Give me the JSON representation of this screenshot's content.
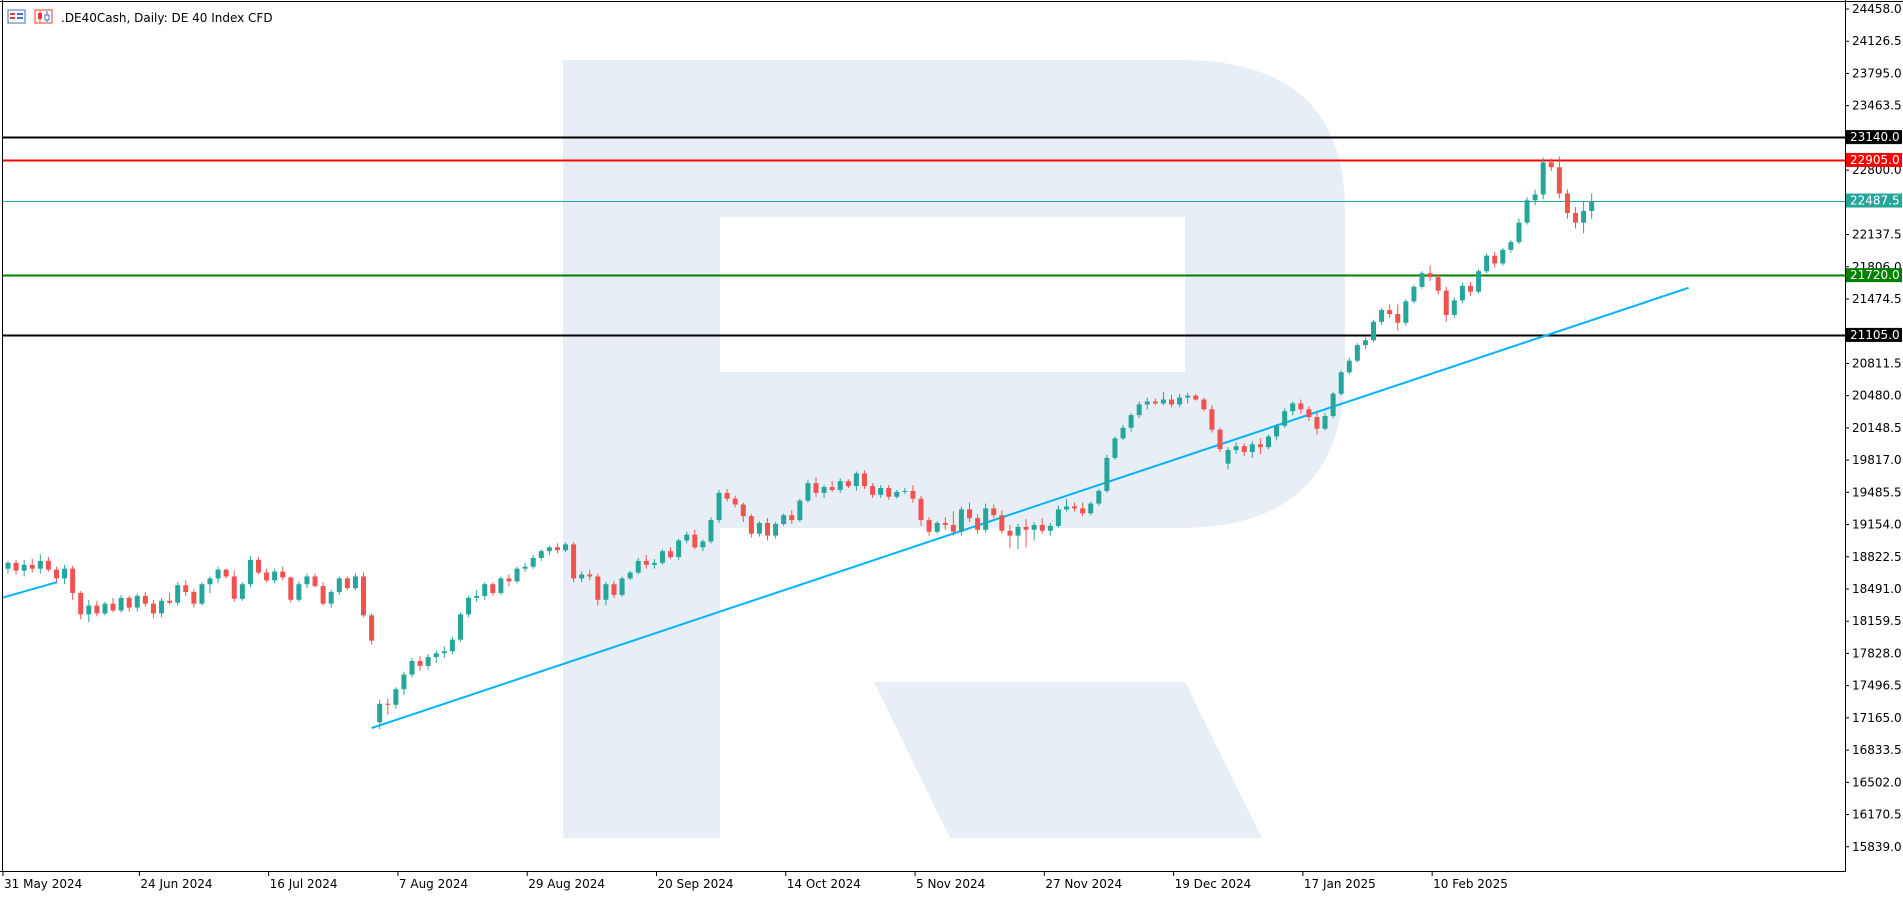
{
  "header": {
    "symbol_title": ".DE40Cash, Daily:  DE 40 Index CFD",
    "icons": [
      "bars-chart-icon",
      "candles-chart-icon"
    ]
  },
  "chart_data": {
    "type": "candlestick",
    "timeframe": "Daily",
    "ylim": [
      15600,
      24530
    ],
    "y_ticks": [
      "24458.0",
      "24126.5",
      "23795.0",
      "23463.5",
      "23140.0",
      "22800.0",
      "22487.5",
      "22137.5",
      "21806.0",
      "21474.5",
      "21105.0",
      "20811.5",
      "20480.0",
      "20148.5",
      "19817.0",
      "19485.5",
      "19154.0",
      "18822.5",
      "18491.0",
      "18159.5",
      "17828.0",
      "17496.5",
      "17165.0",
      "16833.5",
      "16502.0",
      "16170.5",
      "15839.0"
    ],
    "x_ticks": [
      "31 May 2024",
      "24 Jun 2024",
      "16 Jul 2024",
      "7 Aug 2024",
      "29 Aug 2024",
      "20 Sep 2024",
      "14 Oct 2024",
      "5 Nov 2024",
      "27 Nov 2024",
      "19 Dec 2024",
      "17 Jan 2025",
      "10 Feb 2025"
    ],
    "x_tick_bar_index": [
      0,
      17,
      33,
      49,
      65,
      81,
      97,
      113,
      129,
      145,
      161,
      177
    ],
    "levels": [
      {
        "price": 23140.0,
        "label": "23140.0",
        "color": "#000000",
        "label_bg": "#000000",
        "label_fg": "#ffffff"
      },
      {
        "price": 22905.0,
        "label": "22905.0",
        "color": "#ff0000",
        "label_bg": "#ff0000",
        "label_fg": "#ffffff"
      },
      {
        "price": 22487.5,
        "label": "22487.5",
        "color": "#26a69a",
        "label_bg": "#26a69a",
        "label_fg": "#ffffff"
      },
      {
        "price": 21720.0,
        "label": "21720.0",
        "color": "#008000",
        "label_bg": "#008000",
        "label_fg": "#ffffff"
      },
      {
        "price": 21105.0,
        "label": "21105.0",
        "color": "#000000",
        "label_bg": "#000000",
        "label_fg": "#ffffff"
      }
    ],
    "trendline": {
      "from": {
        "bar": 45,
        "price": 17060
      },
      "to": {
        "bar": 208,
        "price": 21590
      },
      "color": "#00b4ff"
    },
    "colors": {
      "up": "#26a69a",
      "down": "#ef5350",
      "axis": "#000000",
      "grid_text": "#000000",
      "watermark": "#e8eef5"
    },
    "candles": [
      [
        18700,
        18780,
        18650,
        18760
      ],
      [
        18760,
        18790,
        18640,
        18680
      ],
      [
        18680,
        18790,
        18620,
        18740
      ],
      [
        18740,
        18800,
        18660,
        18700
      ],
      [
        18700,
        18850,
        18650,
        18780
      ],
      [
        18780,
        18820,
        18670,
        18690
      ],
      [
        18690,
        18720,
        18550,
        18600
      ],
      [
        18600,
        18740,
        18540,
        18700
      ],
      [
        18700,
        18730,
        18380,
        18450
      ],
      [
        18450,
        18470,
        18180,
        18230
      ],
      [
        18230,
        18380,
        18150,
        18320
      ],
      [
        18320,
        18370,
        18210,
        18240
      ],
      [
        18240,
        18360,
        18220,
        18340
      ],
      [
        18340,
        18400,
        18250,
        18270
      ],
      [
        18270,
        18430,
        18250,
        18400
      ],
      [
        18400,
        18420,
        18260,
        18300
      ],
      [
        18300,
        18440,
        18260,
        18420
      ],
      [
        18420,
        18460,
        18310,
        18340
      ],
      [
        18340,
        18380,
        18190,
        18240
      ],
      [
        18240,
        18400,
        18200,
        18370
      ],
      [
        18370,
        18450,
        18330,
        18350
      ],
      [
        18350,
        18560,
        18320,
        18530
      ],
      [
        18530,
        18580,
        18420,
        18460
      ],
      [
        18460,
        18490,
        18300,
        18340
      ],
      [
        18340,
        18560,
        18320,
        18540
      ],
      [
        18540,
        18620,
        18450,
        18600
      ],
      [
        18600,
        18720,
        18550,
        18690
      ],
      [
        18690,
        18700,
        18600,
        18620
      ],
      [
        18620,
        18680,
        18360,
        18390
      ],
      [
        18390,
        18560,
        18370,
        18540
      ],
      [
        18540,
        18830,
        18510,
        18790
      ],
      [
        18790,
        18820,
        18640,
        18660
      ],
      [
        18660,
        18700,
        18560,
        18580
      ],
      [
        18580,
        18700,
        18550,
        18670
      ],
      [
        18670,
        18720,
        18580,
        18610
      ],
      [
        18610,
        18620,
        18350,
        18380
      ],
      [
        18380,
        18570,
        18360,
        18540
      ],
      [
        18540,
        18650,
        18500,
        18620
      ],
      [
        18620,
        18650,
        18510,
        18520
      ],
      [
        18520,
        18560,
        18320,
        18340
      ],
      [
        18340,
        18480,
        18300,
        18460
      ],
      [
        18460,
        18620,
        18430,
        18600
      ],
      [
        18600,
        18620,
        18480,
        18500
      ],
      [
        18500,
        18650,
        18480,
        18620
      ],
      [
        18620,
        18660,
        18200,
        18220
      ],
      [
        18220,
        18240,
        17920,
        17960
      ],
      [
        17120,
        17350,
        17050,
        17310
      ],
      [
        17310,
        17360,
        17200,
        17300
      ],
      [
        17300,
        17480,
        17260,
        17460
      ],
      [
        17460,
        17640,
        17400,
        17610
      ],
      [
        17610,
        17780,
        17580,
        17750
      ],
      [
        17750,
        17800,
        17650,
        17700
      ],
      [
        17700,
        17820,
        17660,
        17790
      ],
      [
        17790,
        17860,
        17730,
        17830
      ],
      [
        17830,
        17900,
        17780,
        17850
      ],
      [
        17850,
        18000,
        17820,
        17970
      ],
      [
        17970,
        18250,
        17950,
        18230
      ],
      [
        18230,
        18420,
        18200,
        18400
      ],
      [
        18400,
        18480,
        18360,
        18420
      ],
      [
        18420,
        18560,
        18380,
        18540
      ],
      [
        18540,
        18560,
        18420,
        18450
      ],
      [
        18450,
        18620,
        18430,
        18600
      ],
      [
        18600,
        18640,
        18520,
        18570
      ],
      [
        18570,
        18720,
        18550,
        18700
      ],
      [
        18700,
        18760,
        18670,
        18720
      ],
      [
        18720,
        18840,
        18700,
        18810
      ],
      [
        18810,
        18900,
        18780,
        18880
      ],
      [
        18880,
        18940,
        18840,
        18920
      ],
      [
        18920,
        18960,
        18860,
        18890
      ],
      [
        18890,
        18970,
        18870,
        18950
      ],
      [
        18950,
        18970,
        18560,
        18600
      ],
      [
        18600,
        18670,
        18560,
        18640
      ],
      [
        18640,
        18690,
        18580,
        18620
      ],
      [
        18620,
        18650,
        18320,
        18380
      ],
      [
        18380,
        18560,
        18320,
        18540
      ],
      [
        18540,
        18570,
        18400,
        18430
      ],
      [
        18430,
        18620,
        18410,
        18600
      ],
      [
        18600,
        18680,
        18580,
        18660
      ],
      [
        18660,
        18810,
        18640,
        18780
      ],
      [
        18780,
        18840,
        18700,
        18740
      ],
      [
        18740,
        18800,
        18700,
        18760
      ],
      [
        18760,
        18900,
        18740,
        18880
      ],
      [
        18880,
        18920,
        18800,
        18820
      ],
      [
        18820,
        19010,
        18790,
        18990
      ],
      [
        18990,
        19080,
        18960,
        19050
      ],
      [
        19050,
        19100,
        18900,
        18920
      ],
      [
        18920,
        19000,
        18880,
        18980
      ],
      [
        18980,
        19230,
        18960,
        19200
      ],
      [
        19200,
        19510,
        19170,
        19480
      ],
      [
        19480,
        19520,
        19390,
        19420
      ],
      [
        19420,
        19450,
        19330,
        19360
      ],
      [
        19360,
        19380,
        19180,
        19240
      ],
      [
        19240,
        19260,
        19020,
        19060
      ],
      [
        19060,
        19190,
        19030,
        19170
      ],
      [
        19170,
        19220,
        18990,
        19040
      ],
      [
        19040,
        19180,
        19010,
        19160
      ],
      [
        19160,
        19270,
        19140,
        19250
      ],
      [
        19250,
        19300,
        19160,
        19200
      ],
      [
        19200,
        19420,
        19180,
        19400
      ],
      [
        19400,
        19610,
        19380,
        19580
      ],
      [
        19580,
        19640,
        19440,
        19480
      ],
      [
        19480,
        19560,
        19430,
        19540
      ],
      [
        19540,
        19600,
        19490,
        19510
      ],
      [
        19510,
        19630,
        19480,
        19600
      ],
      [
        19600,
        19620,
        19530,
        19550
      ],
      [
        19550,
        19700,
        19500,
        19680
      ],
      [
        19680,
        19710,
        19520,
        19550
      ],
      [
        19550,
        19580,
        19430,
        19460
      ],
      [
        19460,
        19560,
        19430,
        19530
      ],
      [
        19530,
        19560,
        19410,
        19440
      ],
      [
        19440,
        19510,
        19420,
        19490
      ],
      [
        19490,
        19530,
        19470,
        19500
      ],
      [
        19500,
        19560,
        19380,
        19420
      ],
      [
        19420,
        19450,
        19140,
        19200
      ],
      [
        19200,
        19230,
        19040,
        19080
      ],
      [
        19080,
        19190,
        19060,
        19170
      ],
      [
        19170,
        19230,
        19100,
        19150
      ],
      [
        19150,
        19290,
        19040,
        19080
      ],
      [
        19080,
        19340,
        19040,
        19310
      ],
      [
        19310,
        19380,
        19180,
        19220
      ],
      [
        19220,
        19260,
        19060,
        19100
      ],
      [
        19100,
        19370,
        19070,
        19320
      ],
      [
        19320,
        19360,
        19220,
        19250
      ],
      [
        19250,
        19300,
        19060,
        19090
      ],
      [
        19090,
        19150,
        18910,
        19040
      ],
      [
        19040,
        19160,
        18900,
        19130
      ],
      [
        19130,
        19210,
        18920,
        19100
      ],
      [
        19100,
        19180,
        18990,
        19150
      ],
      [
        19150,
        19220,
        19060,
        19090
      ],
      [
        19090,
        19170,
        19040,
        19140
      ],
      [
        19140,
        19350,
        19120,
        19310
      ],
      [
        19310,
        19420,
        19290,
        19340
      ],
      [
        19340,
        19380,
        19290,
        19320
      ],
      [
        19320,
        19380,
        19240,
        19270
      ],
      [
        19270,
        19390,
        19250,
        19370
      ],
      [
        19370,
        19520,
        19350,
        19500
      ],
      [
        19500,
        19870,
        19480,
        19840
      ],
      [
        19840,
        20060,
        19820,
        20040
      ],
      [
        20040,
        20180,
        20020,
        20150
      ],
      [
        20150,
        20300,
        20110,
        20280
      ],
      [
        20280,
        20420,
        20250,
        20390
      ],
      [
        20390,
        20460,
        20340,
        20420
      ],
      [
        20420,
        20450,
        20380,
        20400
      ],
      [
        20400,
        20520,
        20380,
        20440
      ],
      [
        20440,
        20490,
        20360,
        20390
      ],
      [
        20390,
        20500,
        20360,
        20460
      ],
      [
        20460,
        20510,
        20400,
        20480
      ],
      [
        20480,
        20500,
        20430,
        20440
      ],
      [
        20440,
        20460,
        20320,
        20340
      ],
      [
        20340,
        20380,
        20100,
        20130
      ],
      [
        20130,
        20150,
        19900,
        19930
      ],
      [
        19780,
        19950,
        19720,
        19920
      ],
      [
        19920,
        20000,
        19880,
        19960
      ],
      [
        19960,
        19990,
        19860,
        19900
      ],
      [
        19900,
        20010,
        19840,
        19980
      ],
      [
        19980,
        20040,
        19880,
        19950
      ],
      [
        19950,
        20080,
        19930,
        20060
      ],
      [
        20060,
        20190,
        20020,
        20170
      ],
      [
        20170,
        20350,
        20150,
        20320
      ],
      [
        20320,
        20420,
        20280,
        20400
      ],
      [
        20400,
        20440,
        20300,
        20340
      ],
      [
        20340,
        20370,
        20220,
        20260
      ],
      [
        20260,
        20310,
        20080,
        20140
      ],
      [
        20140,
        20300,
        20120,
        20270
      ],
      [
        20270,
        20520,
        20250,
        20500
      ],
      [
        20500,
        20740,
        20480,
        20720
      ],
      [
        20720,
        20870,
        20700,
        20840
      ],
      [
        20840,
        21020,
        20820,
        21000
      ],
      [
        21000,
        21080,
        20960,
        21050
      ],
      [
        21050,
        21260,
        21030,
        21240
      ],
      [
        21240,
        21380,
        21210,
        21360
      ],
      [
        21360,
        21420,
        21280,
        21320
      ],
      [
        21320,
        21420,
        21150,
        21230
      ],
      [
        21230,
        21470,
        21200,
        21450
      ],
      [
        21450,
        21620,
        21430,
        21600
      ],
      [
        21600,
        21760,
        21580,
        21740
      ],
      [
        21740,
        21820,
        21660,
        21700
      ],
      [
        21700,
        21730,
        21520,
        21560
      ],
      [
        21560,
        21600,
        21240,
        21310
      ],
      [
        21310,
        21490,
        21280,
        21460
      ],
      [
        21460,
        21640,
        21430,
        21610
      ],
      [
        21610,
        21650,
        21510,
        21550
      ],
      [
        21550,
        21780,
        21530,
        21760
      ],
      [
        21760,
        21940,
        21740,
        21920
      ],
      [
        21920,
        21960,
        21800,
        21840
      ],
      [
        21840,
        22000,
        21820,
        21980
      ],
      [
        21980,
        22080,
        21950,
        22060
      ],
      [
        22060,
        22300,
        22040,
        22260
      ],
      [
        22260,
        22520,
        22240,
        22490
      ],
      [
        22490,
        22600,
        22440,
        22550
      ],
      [
        22550,
        22930,
        22500,
        22880
      ],
      [
        22880,
        22920,
        22790,
        22830
      ],
      [
        22830,
        22940,
        22510,
        22560
      ],
      [
        22560,
        22600,
        22300,
        22360
      ],
      [
        22360,
        22420,
        22200,
        22260
      ],
      [
        22260,
        22480,
        22150,
        22380
      ],
      [
        22380,
        22560,
        22300,
        22480
      ]
    ]
  }
}
